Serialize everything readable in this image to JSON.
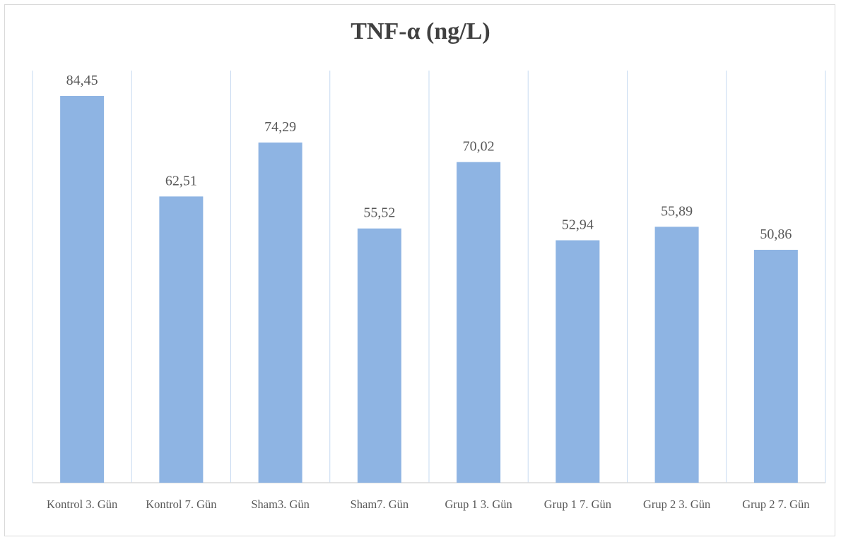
{
  "chart_data": {
    "type": "bar",
    "title": "TNF-α (ng/L)",
    "categories": [
      "Kontrol 3. Gün",
      "Kontrol 7. Gün",
      "Sham3. Gün",
      "Sham7. Gün",
      "Grup 1 3. Gün",
      "Grup 1 7. Gün",
      "Grup 2 3. Gün",
      "Grup 2 7. Gün"
    ],
    "values": [
      84.45,
      62.51,
      74.29,
      55.52,
      70.02,
      52.94,
      55.89,
      50.86
    ],
    "data_labels": [
      "84,45",
      "62,51",
      "74,29",
      "55,52",
      "70,02",
      "52,94",
      "55,89",
      "50,86"
    ],
    "ylim": [
      0,
      90
    ],
    "grid": "vertical",
    "legend": "none",
    "colors": {
      "bar": "#8eb4e3",
      "grid": "#c6d9f1",
      "axis": "#d9d9d9",
      "text": "#595959",
      "title": "#404040"
    }
  }
}
